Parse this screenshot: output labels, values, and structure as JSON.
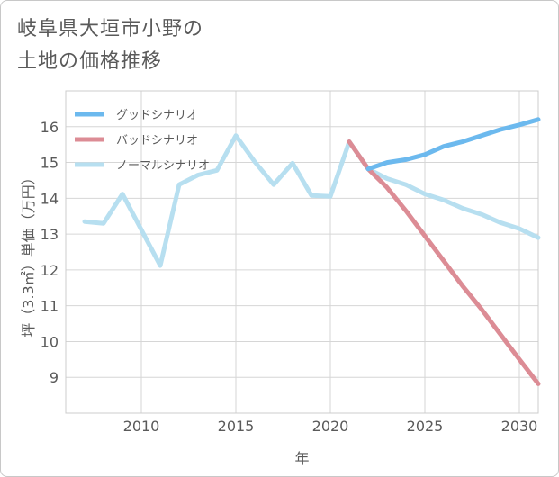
{
  "page": {
    "title_line1": "岐阜県大垣市小野の",
    "title_line2": "土地の価格推移"
  },
  "chart_data": {
    "type": "line",
    "title": "岐阜県大垣市小野の土地の価格推移",
    "xlabel": "年",
    "ylabel": "坪（3.3㎡）単価（万円）",
    "xlim": [
      2006,
      2031
    ],
    "ylim": [
      8,
      17
    ],
    "xticks": [
      2010,
      2015,
      2020,
      2025,
      2030
    ],
    "yticks": [
      9,
      10,
      11,
      12,
      13,
      14,
      15,
      16
    ],
    "grid": true,
    "legend_position": "top-left",
    "series": [
      {
        "name": "グッドシナリオ",
        "color": "#6cb9ee",
        "x": [
          2022,
          2023,
          2024,
          2025,
          2026,
          2027,
          2028,
          2029,
          2030,
          2031
        ],
        "y": [
          14.82,
          15.0,
          15.08,
          15.22,
          15.45,
          15.58,
          15.75,
          15.92,
          16.05,
          16.2
        ]
      },
      {
        "name": "バッドシナリオ",
        "color": "#dc8c95",
        "x": [
          2021,
          2022,
          2023,
          2024,
          2025,
          2026,
          2027,
          2028,
          2029,
          2030,
          2031
        ],
        "y": [
          15.58,
          14.82,
          14.3,
          13.65,
          12.95,
          12.25,
          11.55,
          10.9,
          10.2,
          9.5,
          8.82
        ]
      },
      {
        "name": "ノーマルシナリオ",
        "color": "#b7dff0",
        "x": [
          2007,
          2008,
          2009,
          2010,
          2011,
          2012,
          2013,
          2014,
          2015,
          2016,
          2017,
          2018,
          2019,
          2020,
          2021,
          2022,
          2023,
          2024,
          2025,
          2026,
          2027,
          2028,
          2029,
          2030,
          2031
        ],
        "y": [
          13.35,
          13.3,
          14.12,
          13.12,
          12.12,
          14.38,
          14.65,
          14.78,
          15.75,
          15.02,
          14.38,
          14.98,
          14.08,
          14.05,
          15.58,
          14.82,
          14.55,
          14.38,
          14.12,
          13.95,
          13.72,
          13.55,
          13.32,
          13.15,
          12.9
        ]
      }
    ]
  }
}
